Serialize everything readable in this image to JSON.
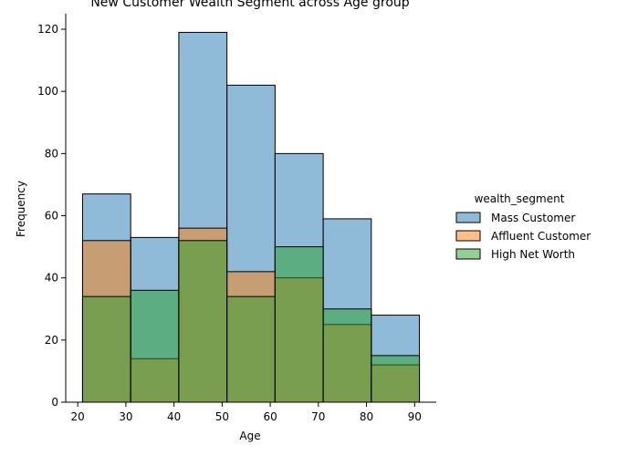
{
  "chart_data": {
    "type": "bar",
    "title": "New Customer Wealth Segment across Age group",
    "xlabel": "Age",
    "ylabel": "Frequency",
    "xlim": [
      17.5,
      94.5
    ],
    "ylim": [
      0,
      125
    ],
    "x_ticks": [
      20,
      30,
      40,
      50,
      60,
      70,
      80,
      90
    ],
    "y_ticks": [
      0,
      20,
      40,
      60,
      80,
      100,
      120
    ],
    "bin_edges": [
      21,
      31,
      41,
      51,
      61,
      71,
      81,
      91
    ],
    "legend_title": "wealth_segment",
    "legend_position": "right",
    "grid": false,
    "series": [
      {
        "name": "Mass Customer",
        "values": [
          67,
          53,
          119,
          102,
          80,
          59,
          28
        ],
        "color": "#1f77b4"
      },
      {
        "name": "Affluent Customer",
        "values": [
          52,
          14,
          56,
          42,
          40,
          25,
          12
        ],
        "color": "#ff7f0e"
      },
      {
        "name": "High Net Worth",
        "values": [
          34,
          36,
          52,
          34,
          50,
          30,
          15
        ],
        "color": "#2ca02c"
      }
    ]
  }
}
